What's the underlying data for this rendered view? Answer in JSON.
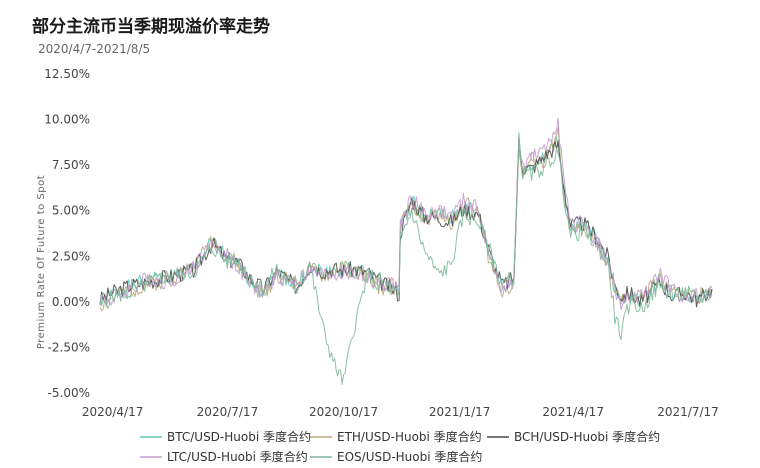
{
  "header": {
    "title": "部分主流币当季期现溢价率走势",
    "subtitle": "2020/4/7-2021/8/5"
  },
  "chart_data": {
    "type": "line",
    "title": "部分主流币当季期现溢价率走势",
    "subtitle": "2020/4/7-2021/8/5",
    "ylabel": "Premium  Rate  Of   Future  to  Spot",
    "xlabel": "",
    "ylim": [
      -5.0,
      12.5
    ],
    "xlim": [
      "2020-04-07",
      "2021-08-05"
    ],
    "yticks": [
      "12.50%",
      "10.00%",
      "7.50%",
      "5.00%",
      "2.50%",
      "0.00%",
      "-2.50%",
      "-5.00%"
    ],
    "ytick_values": [
      12.5,
      10.0,
      7.5,
      5.0,
      2.5,
      0.0,
      -2.5,
      -5.0
    ],
    "xticks": [
      "2020/4/17",
      "2020/7/17",
      "2020/10/17",
      "2021/1/17",
      "2021/4/17",
      "2021/7/17"
    ],
    "xtick_dates": [
      "2020-04-17",
      "2020-07-17",
      "2020-10-17",
      "2021-01-17",
      "2021-04-17",
      "2021-07-17"
    ],
    "grid": false,
    "legend_position": "bottom",
    "series": [
      {
        "name": "BTC/USD-Huobi 季度合约",
        "color": "#5ec9b0",
        "offset": 0.0,
        "seed": 1,
        "x": [
          "2020-04-07",
          "2020-04-17",
          "2020-05-01",
          "2020-05-15",
          "2020-06-01",
          "2020-06-20",
          "2020-07-05",
          "2020-07-17",
          "2020-07-25",
          "2020-08-05",
          "2020-08-15",
          "2020-08-25",
          "2020-09-10",
          "2020-09-20",
          "2020-10-01",
          "2020-10-10",
          "2020-10-17",
          "2020-10-25",
          "2020-11-05",
          "2020-11-15",
          "2020-11-25",
          "2020-11-30",
          "2020-12-01",
          "2020-12-10",
          "2020-12-20",
          "2020-12-31",
          "2021-01-10",
          "2021-01-20",
          "2021-02-01",
          "2021-02-10",
          "2021-02-20",
          "2021-03-01",
          "2021-03-05",
          "2021-03-08",
          "2021-03-15",
          "2021-03-25",
          "2021-04-05",
          "2021-04-10",
          "2021-04-15",
          "2021-04-25",
          "2021-05-05",
          "2021-05-15",
          "2021-05-20",
          "2021-05-25",
          "2021-06-01",
          "2021-06-10",
          "2021-06-25",
          "2021-07-05",
          "2021-07-15",
          "2021-07-25",
          "2021-08-05"
        ],
        "y": [
          0.0,
          0.4,
          0.8,
          1.2,
          1.3,
          1.8,
          3.3,
          2.4,
          2.0,
          1.1,
          0.6,
          1.6,
          0.9,
          1.9,
          1.6,
          1.7,
          1.8,
          1.7,
          1.5,
          1.0,
          0.8,
          0.5,
          4.0,
          5.5,
          4.6,
          4.8,
          4.5,
          5.2,
          4.9,
          2.4,
          0.8,
          1.2,
          8.8,
          7.2,
          7.5,
          7.8,
          8.9,
          6.0,
          4.0,
          4.2,
          3.5,
          2.2,
          0.8,
          0.2,
          0.4,
          0.1,
          1.2,
          0.4,
          0.4,
          0.2,
          0.6
        ]
      },
      {
        "name": "ETH/USD-Huobi 季度合约",
        "color": "#b8a77a",
        "offset": 0.12,
        "seed": 2,
        "x": [
          "2020-04-07",
          "2020-04-17",
          "2020-05-01",
          "2020-05-15",
          "2020-06-01",
          "2020-06-20",
          "2020-07-05",
          "2020-07-17",
          "2020-07-25",
          "2020-08-05",
          "2020-08-15",
          "2020-08-25",
          "2020-09-10",
          "2020-09-20",
          "2020-10-01",
          "2020-10-10",
          "2020-10-17",
          "2020-10-25",
          "2020-11-05",
          "2020-11-15",
          "2020-11-25",
          "2020-11-30",
          "2020-12-01",
          "2020-12-10",
          "2020-12-20",
          "2020-12-31",
          "2021-01-10",
          "2021-01-20",
          "2021-02-01",
          "2021-02-10",
          "2021-02-20",
          "2021-03-01",
          "2021-03-05",
          "2021-03-08",
          "2021-03-15",
          "2021-03-25",
          "2021-04-05",
          "2021-04-10",
          "2021-04-15",
          "2021-04-25",
          "2021-05-05",
          "2021-05-15",
          "2021-05-20",
          "2021-05-25",
          "2021-06-01",
          "2021-06-10",
          "2021-06-25",
          "2021-07-05",
          "2021-07-15",
          "2021-07-25",
          "2021-08-05"
        ],
        "y": [
          -0.2,
          0.2,
          0.6,
          1.0,
          1.2,
          1.9,
          3.4,
          2.5,
          2.1,
          1.0,
          0.4,
          1.5,
          1.0,
          1.8,
          1.4,
          1.6,
          1.9,
          1.6,
          1.4,
          0.8,
          0.9,
          0.6,
          4.2,
          5.3,
          4.4,
          4.9,
          4.3,
          5.4,
          5.0,
          2.1,
          0.6,
          1.0,
          8.6,
          7.0,
          7.8,
          7.6,
          9.2,
          5.6,
          3.8,
          4.0,
          3.3,
          2.0,
          0.6,
          0.0,
          0.3,
          0.2,
          1.4,
          0.5,
          0.3,
          0.3,
          0.5
        ]
      },
      {
        "name": "BCH/USD-Huobi 季度合约",
        "color": "#4a4a4a",
        "offset": -0.1,
        "seed": 3,
        "x": [
          "2020-04-07",
          "2020-04-17",
          "2020-05-01",
          "2020-05-15",
          "2020-06-01",
          "2020-06-20",
          "2020-07-05",
          "2020-07-17",
          "2020-07-25",
          "2020-08-05",
          "2020-08-15",
          "2020-08-25",
          "2020-09-10",
          "2020-09-20",
          "2020-10-01",
          "2020-10-10",
          "2020-10-17",
          "2020-10-25",
          "2020-11-05",
          "2020-11-15",
          "2020-11-25",
          "2020-11-30",
          "2020-12-01",
          "2020-12-10",
          "2020-12-20",
          "2020-12-31",
          "2021-01-10",
          "2021-01-20",
          "2021-02-01",
          "2021-02-10",
          "2021-02-20",
          "2021-03-01",
          "2021-03-05",
          "2021-03-08",
          "2021-03-15",
          "2021-03-25",
          "2021-04-05",
          "2021-04-10",
          "2021-04-15",
          "2021-04-25",
          "2021-05-05",
          "2021-05-15",
          "2021-05-20",
          "2021-05-25",
          "2021-06-01",
          "2021-06-10",
          "2021-06-25",
          "2021-07-05",
          "2021-07-15",
          "2021-07-25",
          "2021-08-05"
        ],
        "y": [
          0.1,
          0.5,
          0.9,
          1.1,
          1.4,
          1.7,
          3.2,
          2.3,
          2.2,
          1.2,
          0.7,
          1.7,
          0.8,
          2.0,
          1.7,
          1.8,
          1.7,
          1.8,
          1.6,
          1.1,
          0.7,
          0.4,
          3.8,
          5.6,
          4.7,
          4.6,
          4.4,
          5.1,
          4.8,
          2.6,
          0.9,
          1.3,
          9.0,
          7.4,
          7.3,
          8.0,
          8.6,
          6.2,
          4.2,
          4.3,
          3.6,
          2.4,
          0.9,
          0.3,
          0.5,
          0.0,
          1.1,
          0.3,
          0.5,
          0.1,
          0.7
        ]
      },
      {
        "name": "LTC/USD-Huobi 季度合约",
        "color": "#c79bd6",
        "offset": 0.2,
        "seed": 4,
        "x": [
          "2020-04-07",
          "2020-04-17",
          "2020-05-01",
          "2020-05-15",
          "2020-06-01",
          "2020-06-20",
          "2020-07-05",
          "2020-07-17",
          "2020-07-25",
          "2020-08-05",
          "2020-08-15",
          "2020-08-25",
          "2020-09-10",
          "2020-09-20",
          "2020-10-01",
          "2020-10-10",
          "2020-10-17",
          "2020-10-25",
          "2020-11-05",
          "2020-11-15",
          "2020-11-25",
          "2020-11-30",
          "2020-12-01",
          "2020-12-10",
          "2020-12-20",
          "2020-12-31",
          "2021-01-10",
          "2021-01-20",
          "2021-02-01",
          "2021-02-10",
          "2021-02-20",
          "2021-03-01",
          "2021-03-05",
          "2021-03-08",
          "2021-03-15",
          "2021-03-25",
          "2021-04-05",
          "2021-04-10",
          "2021-04-15",
          "2021-04-25",
          "2021-05-05",
          "2021-05-15",
          "2021-05-20",
          "2021-05-25",
          "2021-06-01",
          "2021-06-10",
          "2021-06-25",
          "2021-07-05",
          "2021-07-15",
          "2021-07-25",
          "2021-08-05"
        ],
        "y": [
          0.2,
          0.1,
          0.7,
          1.3,
          1.1,
          2.0,
          3.1,
          2.6,
          1.9,
          0.9,
          0.5,
          1.4,
          1.1,
          1.7,
          1.5,
          1.5,
          1.6,
          1.5,
          1.3,
          0.9,
          1.0,
          0.7,
          4.1,
          5.7,
          4.8,
          5.0,
          4.7,
          5.5,
          5.1,
          2.3,
          0.7,
          1.1,
          8.7,
          7.6,
          7.9,
          8.2,
          10.0,
          6.4,
          4.1,
          4.4,
          3.4,
          2.1,
          0.7,
          -0.2,
          0.2,
          0.3,
          1.5,
          0.6,
          0.2,
          0.4,
          0.4
        ]
      },
      {
        "name": "EOS/USD-Huobi 季度合约",
        "color": "#7fb89a",
        "offset": -0.2,
        "seed": 5,
        "x": [
          "2020-04-07",
          "2020-04-17",
          "2020-05-01",
          "2020-05-15",
          "2020-06-01",
          "2020-06-20",
          "2020-07-05",
          "2020-07-17",
          "2020-07-25",
          "2020-08-05",
          "2020-08-15",
          "2020-08-25",
          "2020-09-10",
          "2020-09-20",
          "2020-10-01",
          "2020-10-10",
          "2020-10-17",
          "2020-10-25",
          "2020-11-05",
          "2020-11-15",
          "2020-11-25",
          "2020-11-30",
          "2020-12-01",
          "2020-12-10",
          "2020-12-20",
          "2020-12-31",
          "2021-01-10",
          "2021-01-20",
          "2021-02-01",
          "2021-02-10",
          "2021-02-20",
          "2021-03-01",
          "2021-03-05",
          "2021-03-08",
          "2021-03-15",
          "2021-03-25",
          "2021-04-05",
          "2021-04-10",
          "2021-04-15",
          "2021-04-25",
          "2021-05-05",
          "2021-05-15",
          "2021-05-20",
          "2021-05-25",
          "2021-06-01",
          "2021-06-10",
          "2021-06-25",
          "2021-07-05",
          "2021-07-15",
          "2021-07-25",
          "2021-08-05"
        ],
        "y": [
          -0.3,
          0.3,
          0.5,
          1.0,
          1.5,
          1.6,
          3.0,
          2.2,
          2.3,
          1.3,
          0.8,
          1.8,
          0.7,
          2.1,
          -1.5,
          -3.5,
          -4.4,
          -1.5,
          1.5,
          1.2,
          0.6,
          0.3,
          3.5,
          5.0,
          2.8,
          1.5,
          2.0,
          4.8,
          4.4,
          2.8,
          1.0,
          1.4,
          8.9,
          7.1,
          7.0,
          7.4,
          8.2,
          5.8,
          3.6,
          3.9,
          3.2,
          2.0,
          -0.8,
          -1.8,
          0.1,
          -0.4,
          1.0,
          0.2,
          0.6,
          0.0,
          0.8
        ]
      }
    ]
  }
}
